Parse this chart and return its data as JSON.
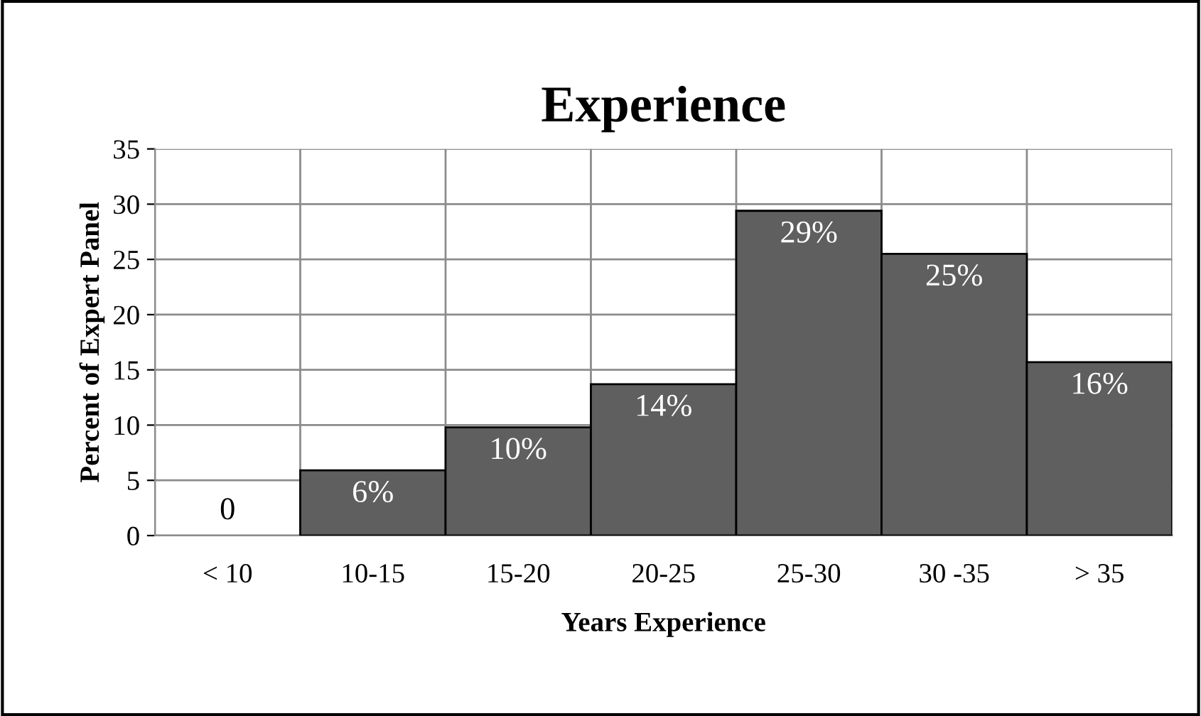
{
  "chart_data": {
    "type": "bar",
    "title": "Experience",
    "xlabel": "Years Experience",
    "ylabel": "Percent of Expert Panel",
    "categories": [
      "< 10",
      "10-15",
      "15-20",
      "20-25",
      "25-30",
      "30 -35",
      "> 35"
    ],
    "values": [
      0,
      5.9,
      9.8,
      13.7,
      29.4,
      25.5,
      15.7
    ],
    "value_labels": [
      "0",
      "6%",
      "10%",
      "14%",
      "29%",
      "25%",
      "16%"
    ],
    "color": "#5f5f5f",
    "ylim": [
      0,
      35
    ],
    "yticks": [
      0,
      5,
      10,
      15,
      20,
      25,
      30,
      35
    ],
    "grid": true,
    "legend": false
  }
}
